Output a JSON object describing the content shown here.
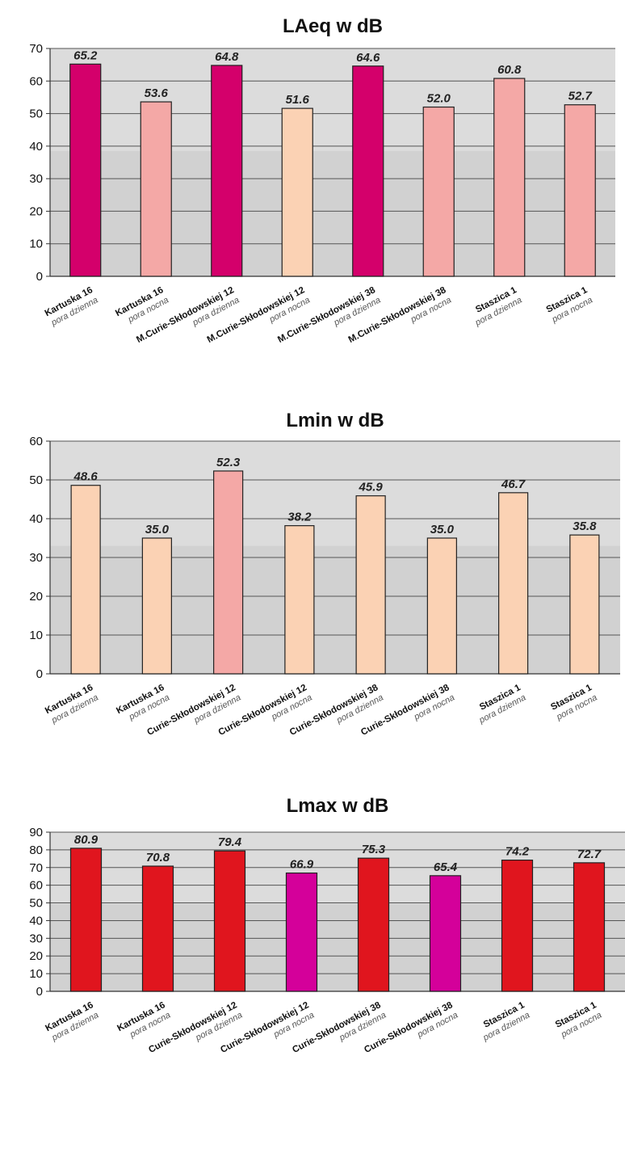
{
  "chart_data": [
    {
      "type": "bar",
      "title": "LAeq w dB",
      "ylim": [
        0,
        70
      ],
      "yticks": [
        0,
        10,
        20,
        30,
        40,
        50,
        60,
        70
      ],
      "grid": true,
      "categories": [
        {
          "name": "Kartuska 16",
          "period": "pora dzienna"
        },
        {
          "name": "Kartuska 16",
          "period": "pora nocna"
        },
        {
          "name": "M.Curie-Skłodowskiej 12",
          "period": "pora dzienna"
        },
        {
          "name": "M.Curie-Skłodowskiej 12",
          "period": "pora nocna"
        },
        {
          "name": "M.Curie-Skłodowskiej 38",
          "period": "pora dzienna"
        },
        {
          "name": "M.Curie-Skłodowskiej 38",
          "period": "pora nocna"
        },
        {
          "name": "Staszica 1",
          "period": "pora dzienna"
        },
        {
          "name": "Staszica 1",
          "period": "pora nocna"
        }
      ],
      "values": [
        65.2,
        53.6,
        64.8,
        51.6,
        64.6,
        52.0,
        60.8,
        52.7
      ],
      "value_labels": [
        "65.2",
        "53.6",
        "64.8",
        "51.6",
        "64.6",
        "52.0",
        "60.8",
        "52.7"
      ],
      "bar_colors": [
        "#d4006b",
        "#f4a8a6",
        "#d4006b",
        "#fbd2b4",
        "#d4006b",
        "#f4a8a6",
        "#f4a8a6",
        "#f4a8a6"
      ]
    },
    {
      "type": "bar",
      "title": "Lmin w dB",
      "ylim": [
        0,
        60
      ],
      "yticks": [
        0,
        10,
        20,
        30,
        40,
        50,
        60
      ],
      "grid": true,
      "categories": [
        {
          "name": "Kartuska 16",
          "period": "pora dzienna"
        },
        {
          "name": "Kartuska 16",
          "period": "pora nocna"
        },
        {
          "name": "Curie-Skłodowskiej 12",
          "period": "pora dzienna"
        },
        {
          "name": "Curie-Skłodowskiej 12",
          "period": "pora nocna"
        },
        {
          "name": "Curie-Skłodowskiej 38",
          "period": "pora dzienna"
        },
        {
          "name": "Curie-Skłodowskiej 38",
          "period": "pora nocna"
        },
        {
          "name": "Staszica 1",
          "period": "pora dzienna"
        },
        {
          "name": "Staszica 1",
          "period": "pora nocna"
        }
      ],
      "values": [
        48.6,
        35.0,
        52.3,
        38.2,
        45.9,
        35.0,
        46.7,
        35.8
      ],
      "value_labels": [
        "48.6",
        "35.0",
        "52.3",
        "38.2",
        "45.9",
        "35.0",
        "46.7",
        "35.8"
      ],
      "bar_colors": [
        "#fbd2b4",
        "#fbd2b4",
        "#f4a8a6",
        "#fbd2b4",
        "#fbd2b4",
        "#fbd2b4",
        "#fbd2b4",
        "#fbd2b4"
      ]
    },
    {
      "type": "bar",
      "title": "Lmax w dB",
      "ylim": [
        0,
        90
      ],
      "yticks": [
        0,
        10,
        20,
        30,
        40,
        50,
        60,
        70,
        80,
        90
      ],
      "grid": true,
      "categories": [
        {
          "name": "Kartuska 16",
          "period": "pora dzienna"
        },
        {
          "name": "Kartuska 16",
          "period": "pora nocna"
        },
        {
          "name": "Curie-Skłodowskiej 12",
          "period": "pora dzienna"
        },
        {
          "name": "Curie-Skłodowskiej 12",
          "period": "pora nocna"
        },
        {
          "name": "Curie-Skłodowskiej 38",
          "period": "pora dzienna"
        },
        {
          "name": "Curie-Skłodowskiej 38",
          "period": "pora nocna"
        },
        {
          "name": "Staszica 1",
          "period": "pora dzienna"
        },
        {
          "name": "Staszica 1",
          "period": "pora nocna"
        }
      ],
      "values": [
        80.9,
        70.8,
        79.4,
        66.9,
        75.3,
        65.4,
        74.2,
        72.7
      ],
      "value_labels": [
        "80.9",
        "70.8",
        "79.4",
        "66.9",
        "75.3",
        "65.4",
        "74.2",
        "72.7"
      ],
      "bar_colors": [
        "#e0151e",
        "#e0151e",
        "#e0151e",
        "#d4009a",
        "#e0151e",
        "#d4009a",
        "#e0151e",
        "#e0151e"
      ]
    }
  ]
}
